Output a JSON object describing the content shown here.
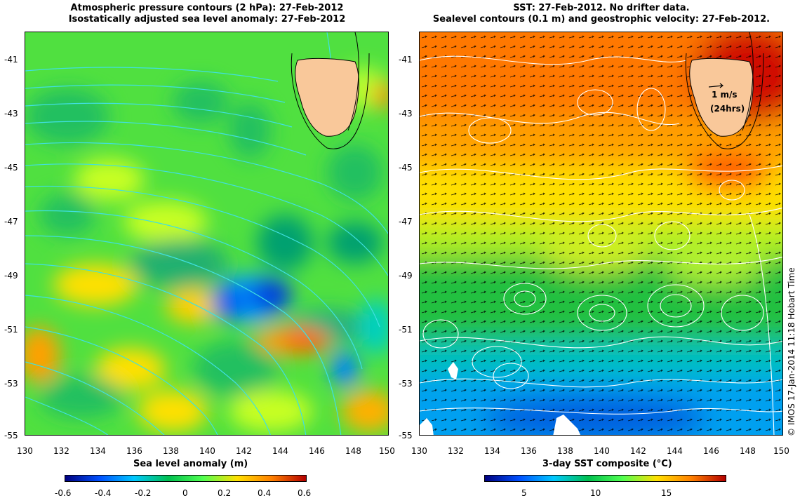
{
  "left": {
    "title_line1": "Atmospheric pressure contours (2 hPa): 27-Feb-2012",
    "title_line2": "Isostatically adjusted sea level anomaly: 27-Feb-2012",
    "colorbar_label": "Sea level anomaly (m)",
    "colorbar_ticks": [
      "-0.6",
      "-0.4",
      "-0.2",
      "0",
      "0.2",
      "0.4",
      "0.6"
    ],
    "colorbar_colors": [
      "#00007f",
      "#0050ff",
      "#00c8ff",
      "#00c050",
      "#50ff50",
      "#ffe000",
      "#ff8000",
      "#b40000"
    ]
  },
  "right": {
    "title_line1": "SST: 27-Feb-2012. No drifter data.",
    "title_line2": "Sealevel contours (0.1 m) and geostrophic velocity: 27-Feb-2012.",
    "colorbar_label": "3-day SST composite (°C)",
    "colorbar_ticks": [
      "5",
      "10",
      "15"
    ],
    "colorbar_colors": [
      "#00007f",
      "#0050ff",
      "#00c8ff",
      "#00c050",
      "#50ff50",
      "#ffe000",
      "#ff8000",
      "#b40000"
    ],
    "velocity_legend_line1": "1 m/s",
    "velocity_legend_line2": "(24hrs)"
  },
  "x_ticks": [
    "130",
    "132",
    "134",
    "136",
    "138",
    "140",
    "142",
    "144",
    "146",
    "148",
    "150"
  ],
  "y_ticks": [
    "-41",
    "-43",
    "-45",
    "-47",
    "-49",
    "-51",
    "-53",
    "-55"
  ],
  "credit": "© IMOS 17-Jan-2014 11:18 Hobart Time",
  "colors": {
    "land": "#f9c89a",
    "contour_left": "#40e0e0",
    "contour_right": "#ffffff"
  }
}
